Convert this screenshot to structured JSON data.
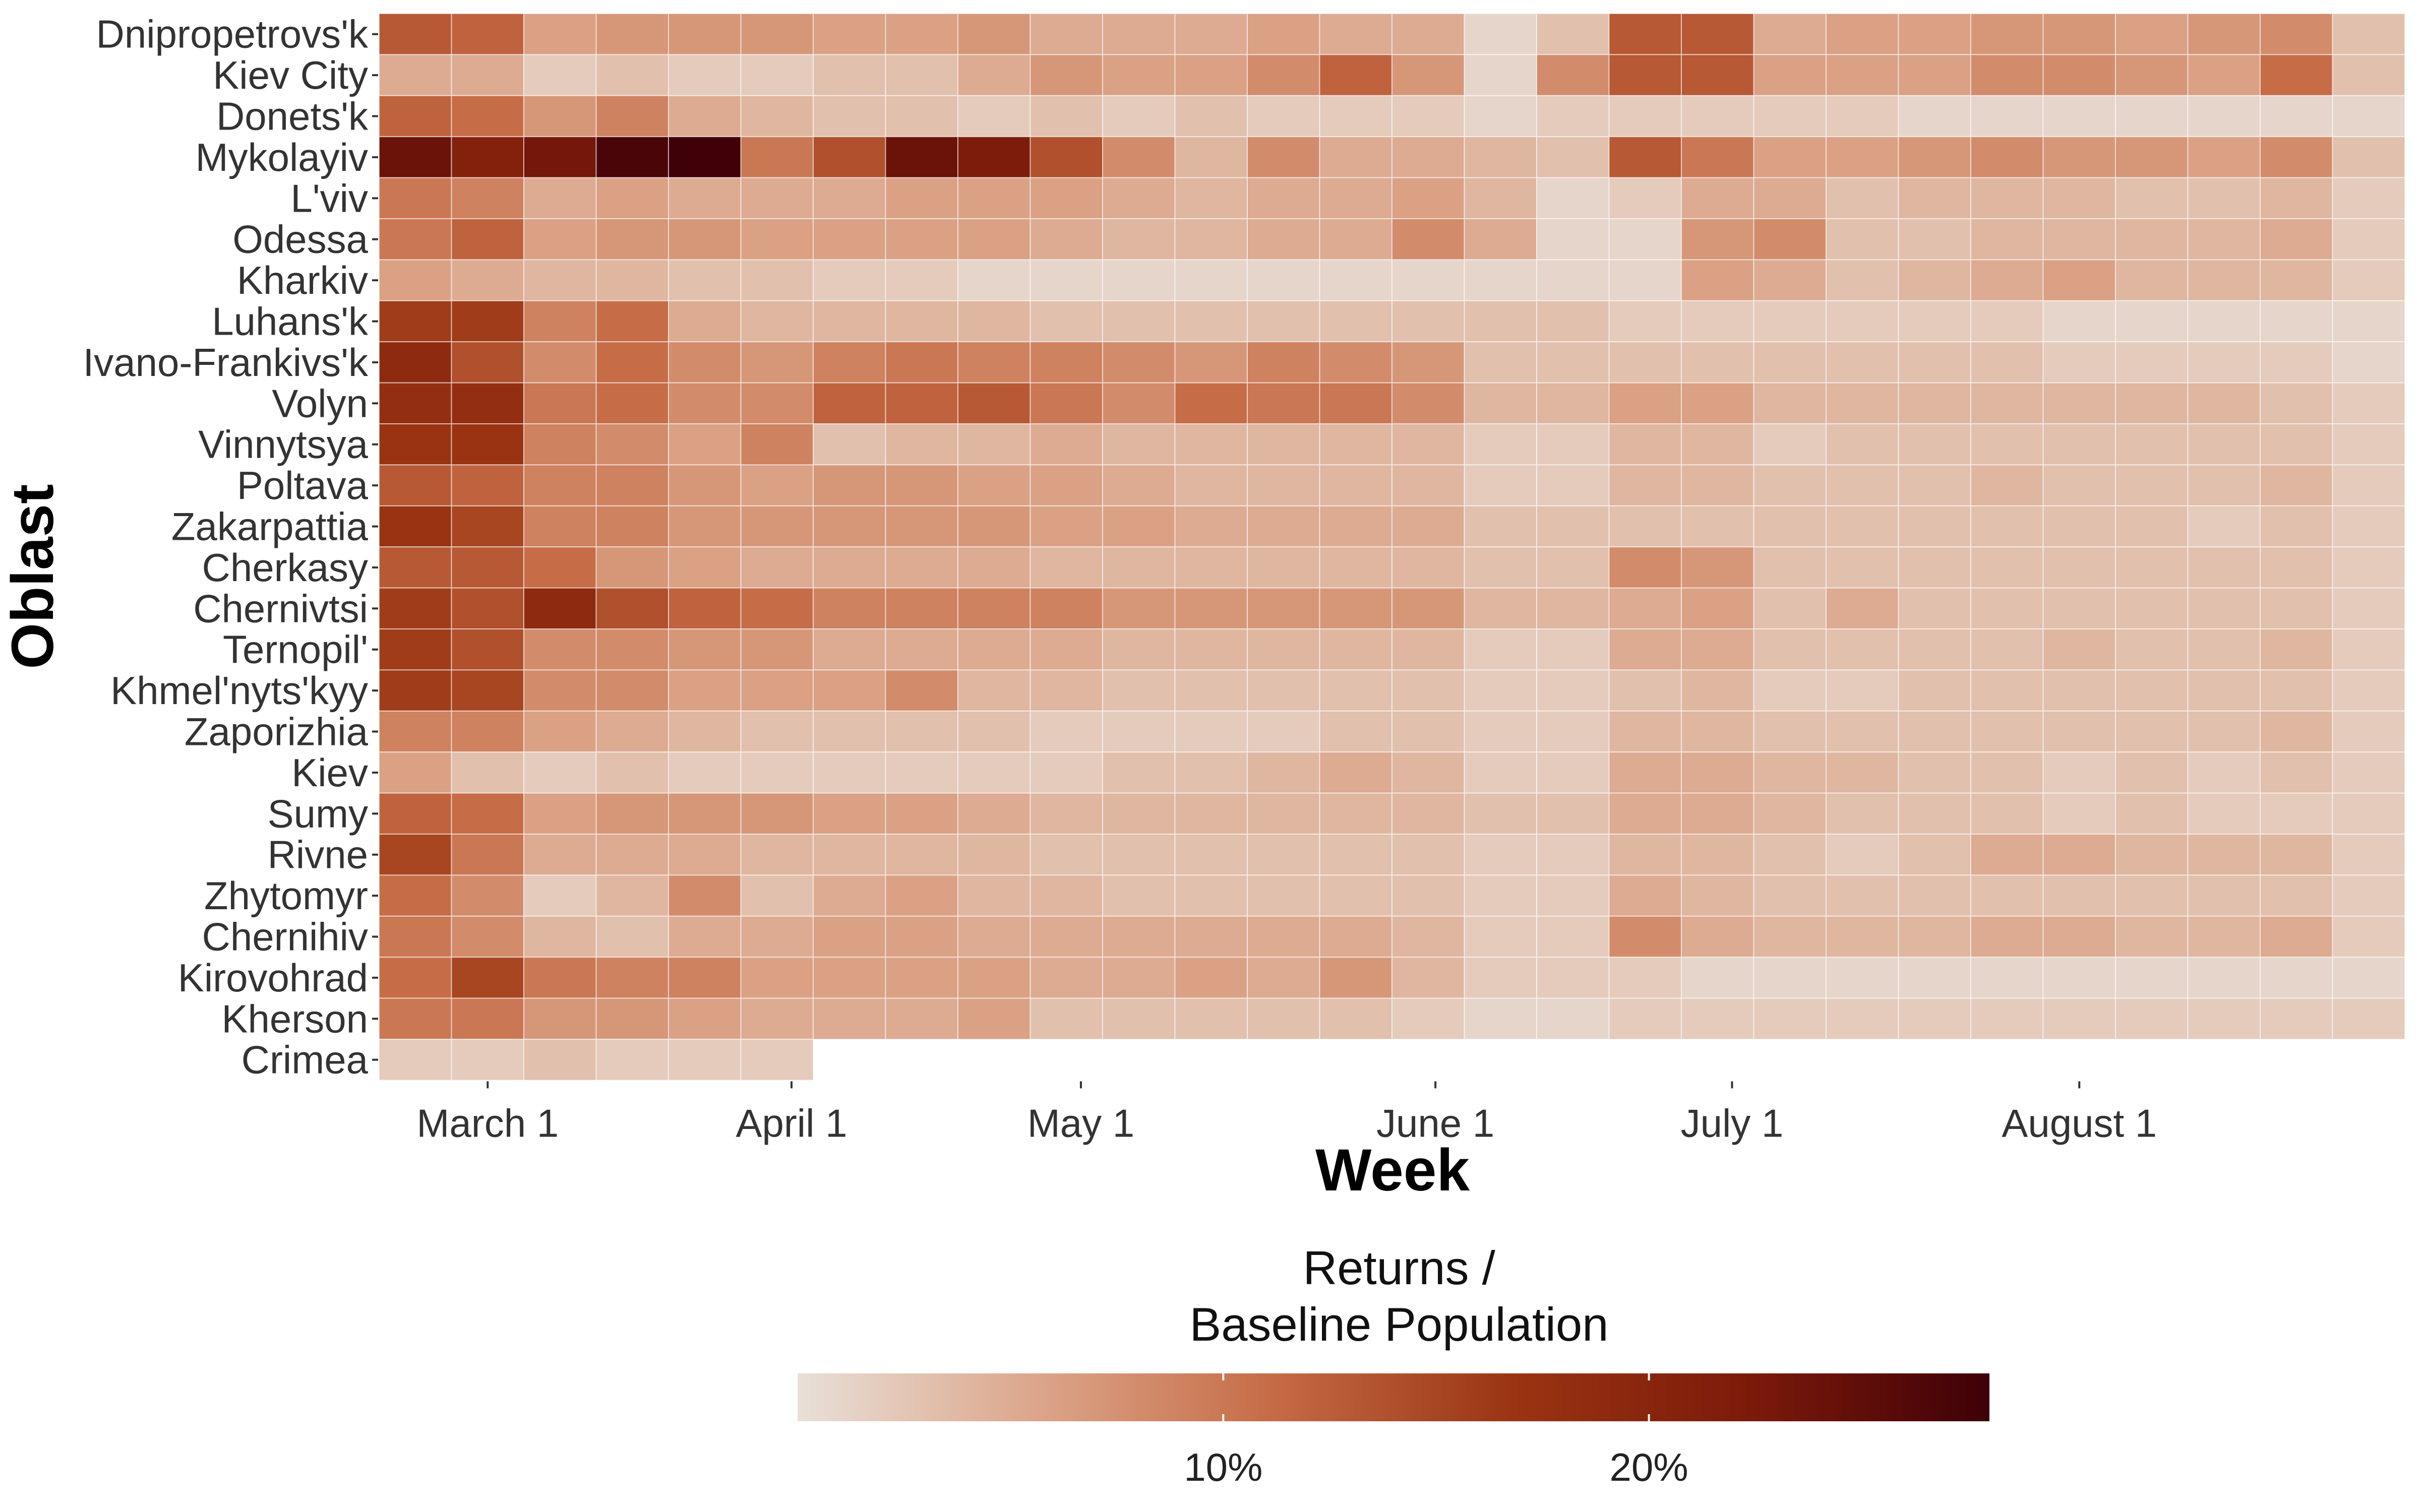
{
  "chart_data": {
    "type": "heatmap",
    "title": "",
    "xlabel": "Week",
    "ylabel": "Oblast",
    "x_tick_labels": [
      "March 1",
      "April 1",
      "May 1",
      "June 1",
      "July 1",
      "August 1"
    ],
    "x_tick_weeks": [
      1.5,
      5.7,
      9.7,
      14.6,
      18.7,
      23.5
    ],
    "weeks": 28,
    "oblasts": [
      "Dnipropetrovs'k",
      "Kiev City",
      "Donets'k",
      "Mykolayiv",
      "L'viv",
      "Odessa",
      "Kharkiv",
      "Luhans'k",
      "Ivano-Frankivs'k",
      "Volyn",
      "Vinnytsya",
      "Poltava",
      "Zakarpattia",
      "Cherkasy",
      "Chernivtsi",
      "Ternopil'",
      "Khmel'nyts'kyy",
      "Zaporizhia",
      "Kiev",
      "Sumy",
      "Rivne",
      "Zhytomyr",
      "Chernihiv",
      "Kirovohrad",
      "Kherson",
      "Crimea"
    ],
    "values_percent": [
      [
        13,
        12,
        6,
        7,
        7,
        7,
        6,
        6,
        7,
        5,
        5,
        5,
        6,
        5,
        5,
        1,
        3,
        13,
        13,
        5,
        6,
        6,
        7,
        7,
        6,
        7,
        8,
        3
      ],
      [
        5,
        5,
        2,
        3,
        2,
        2,
        3,
        3,
        5,
        7,
        6,
        6,
        8,
        12,
        7,
        1,
        8,
        13,
        13,
        6,
        6,
        6,
        8,
        8,
        7,
        6,
        11,
        3
      ],
      [
        12,
        11,
        7,
        9,
        5,
        4,
        3,
        3,
        2,
        3,
        2,
        3,
        2,
        2,
        2,
        1,
        2,
        2,
        2,
        2,
        2,
        1,
        1,
        1,
        1,
        1,
        1,
        1
      ],
      [
        24,
        21,
        23,
        27,
        30,
        10,
        14,
        24,
        22,
        14,
        8,
        4,
        8,
        5,
        5,
        4,
        3,
        13,
        10,
        6,
        6,
        7,
        8,
        7,
        7,
        6,
        8,
        3
      ],
      [
        10,
        9,
        5,
        6,
        5,
        5,
        5,
        6,
        6,
        6,
        5,
        4,
        5,
        5,
        6,
        4,
        1,
        2,
        5,
        5,
        3,
        4,
        4,
        4,
        3,
        3,
        4,
        2
      ],
      [
        10,
        12,
        6,
        7,
        7,
        6,
        6,
        6,
        6,
        5,
        4,
        4,
        5,
        5,
        8,
        5,
        1,
        1,
        7,
        8,
        3,
        3,
        4,
        4,
        4,
        4,
        5,
        2
      ],
      [
        6,
        5,
        4,
        4,
        3,
        3,
        2,
        2,
        1,
        1,
        1,
        1,
        1,
        1,
        1,
        1,
        1,
        1,
        6,
        5,
        3,
        4,
        5,
        6,
        4,
        4,
        4,
        2
      ],
      [
        16,
        16,
        9,
        11,
        5,
        4,
        4,
        4,
        4,
        3,
        3,
        3,
        3,
        3,
        3,
        3,
        3,
        2,
        2,
        2,
        2,
        2,
        2,
        1,
        1,
        1,
        1,
        1
      ],
      [
        19,
        14,
        8,
        11,
        8,
        7,
        9,
        10,
        9,
        9,
        8,
        7,
        9,
        8,
        7,
        3,
        3,
        3,
        3,
        3,
        3,
        3,
        3,
        2,
        2,
        2,
        2,
        1
      ],
      [
        18,
        18,
        10,
        11,
        8,
        8,
        12,
        12,
        13,
        10,
        8,
        11,
        10,
        10,
        8,
        4,
        4,
        6,
        6,
        4,
        4,
        4,
        4,
        4,
        4,
        4,
        3,
        2
      ],
      [
        17,
        17,
        9,
        8,
        6,
        9,
        3,
        4,
        4,
        5,
        4,
        4,
        4,
        4,
        4,
        2,
        2,
        4,
        4,
        2,
        3,
        3,
        3,
        3,
        3,
        3,
        3,
        2
      ],
      [
        13,
        12,
        9,
        9,
        7,
        6,
        7,
        7,
        6,
        6,
        5,
        4,
        4,
        4,
        4,
        2,
        2,
        4,
        4,
        3,
        3,
        3,
        4,
        3,
        3,
        3,
        4,
        2
      ],
      [
        17,
        15,
        9,
        9,
        7,
        7,
        7,
        7,
        7,
        6,
        6,
        5,
        5,
        5,
        5,
        3,
        3,
        3,
        3,
        3,
        3,
        3,
        3,
        3,
        3,
        2,
        3,
        2
      ],
      [
        13,
        13,
        11,
        7,
        6,
        5,
        5,
        5,
        5,
        4,
        4,
        4,
        4,
        4,
        4,
        3,
        3,
        8,
        7,
        3,
        3,
        3,
        3,
        3,
        3,
        3,
        3,
        2
      ],
      [
        16,
        14,
        19,
        14,
        12,
        11,
        9,
        9,
        9,
        9,
        7,
        7,
        7,
        7,
        7,
        4,
        4,
        5,
        6,
        3,
        5,
        3,
        3,
        3,
        3,
        3,
        3,
        2
      ],
      [
        16,
        14,
        8,
        8,
        7,
        7,
        5,
        5,
        5,
        5,
        4,
        4,
        4,
        4,
        4,
        2,
        2,
        5,
        5,
        3,
        3,
        3,
        3,
        4,
        3,
        3,
        4,
        2
      ],
      [
        16,
        15,
        8,
        8,
        6,
        6,
        6,
        8,
        4,
        4,
        3,
        3,
        3,
        3,
        3,
        2,
        2,
        3,
        4,
        2,
        2,
        3,
        3,
        3,
        3,
        3,
        3,
        2
      ],
      [
        9,
        9,
        6,
        5,
        4,
        3,
        3,
        3,
        3,
        2,
        2,
        2,
        2,
        3,
        3,
        2,
        2,
        4,
        4,
        3,
        3,
        3,
        3,
        3,
        3,
        3,
        4,
        2
      ],
      [
        6,
        3,
        2,
        3,
        2,
        2,
        2,
        2,
        2,
        2,
        3,
        3,
        4,
        5,
        4,
        2,
        2,
        5,
        5,
        4,
        4,
        3,
        3,
        2,
        3,
        2,
        3,
        2
      ],
      [
        12,
        11,
        6,
        7,
        7,
        7,
        6,
        6,
        5,
        4,
        4,
        4,
        4,
        4,
        4,
        3,
        3,
        5,
        5,
        4,
        3,
        3,
        3,
        2,
        3,
        2,
        2,
        2
      ],
      [
        15,
        10,
        5,
        5,
        5,
        4,
        4,
        4,
        4,
        3,
        3,
        3,
        3,
        3,
        3,
        2,
        2,
        4,
        4,
        3,
        2,
        3,
        5,
        5,
        4,
        4,
        4,
        2
      ],
      [
        11,
        8,
        2,
        4,
        8,
        3,
        5,
        6,
        4,
        4,
        3,
        3,
        3,
        3,
        3,
        2,
        2,
        5,
        4,
        3,
        3,
        3,
        3,
        3,
        3,
        3,
        3,
        2
      ],
      [
        10,
        8,
        4,
        3,
        5,
        5,
        6,
        6,
        5,
        5,
        5,
        5,
        5,
        5,
        4,
        2,
        2,
        8,
        5,
        4,
        4,
        4,
        5,
        5,
        4,
        4,
        5,
        2
      ],
      [
        11,
        15,
        10,
        9,
        9,
        6,
        6,
        6,
        6,
        5,
        5,
        6,
        5,
        7,
        4,
        2,
        2,
        2,
        1,
        1,
        1,
        1,
        1,
        1,
        1,
        1,
        1,
        1
      ],
      [
        10,
        10,
        7,
        7,
        6,
        5,
        5,
        5,
        6,
        3,
        3,
        3,
        3,
        3,
        2,
        1,
        1,
        2,
        2,
        2,
        2,
        2,
        2,
        2,
        2,
        2,
        2,
        2
      ],
      [
        2,
        2,
        3,
        2,
        2,
        2,
        null,
        null,
        null,
        null,
        null,
        null,
        null,
        null,
        null,
        null,
        null,
        null,
        null,
        null,
        null,
        null,
        null,
        null,
        null,
        null,
        null,
        null
      ]
    ],
    "color_scale": {
      "title_line1": "Returns /",
      "title_line2": "Baseline Population",
      "min": 0,
      "max": 28,
      "tick_values": [
        10,
        20
      ],
      "tick_labels": [
        "10%",
        "20%"
      ],
      "colors": [
        "#e8e0d8",
        "#dca58a",
        "#c56b45",
        "#9a3412",
        "#7c1a0a",
        "#3f0008"
      ]
    },
    "grid": false,
    "legend_position": "bottom"
  }
}
